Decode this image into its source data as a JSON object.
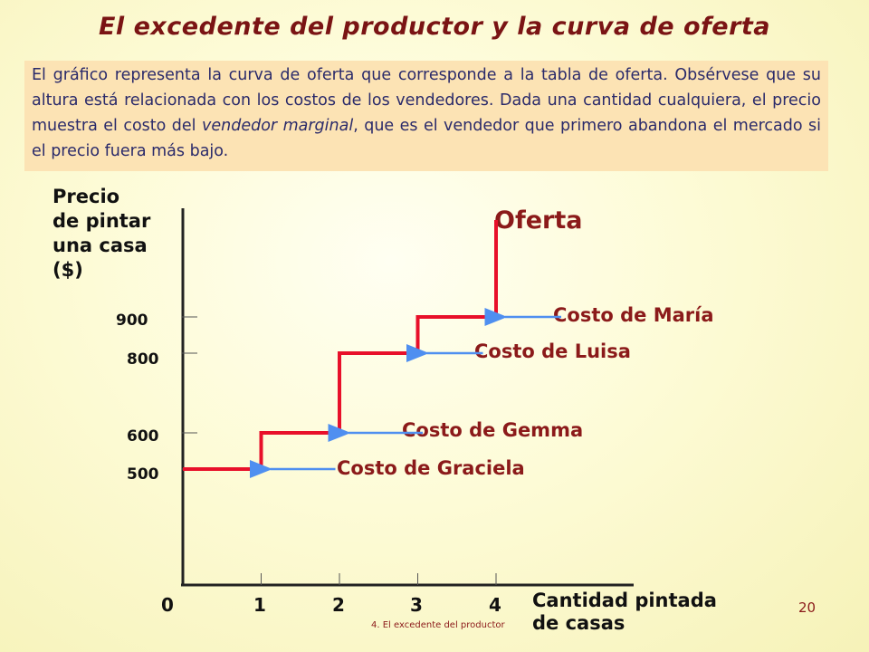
{
  "title": "El excedente del productor y la curva de oferta",
  "description": {
    "before_italic": "El gráfico representa la curva de oferta que corresponde a la tabla de oferta. Obsérvese que su altura está relacionada con los costos de los vendedores. Dada una cantidad cualquiera, el precio muestra el costo del ",
    "italic": "vendedor marginal",
    "after_italic": ", que es el vendedor que primero abandona el mercado si el precio fuera más bajo."
  },
  "page_number": "20",
  "footer": "4. El excedente del productor",
  "colors": {
    "curve": "#e8102a",
    "arrow": "#4f8ff0",
    "label": "#8b1a1a",
    "axis": "#222222"
  },
  "chart_data": {
    "type": "line",
    "step": true,
    "ylabel_lines": [
      "Precio",
      "de pintar",
      "una casa",
      "($)"
    ],
    "xlabel_lines": [
      "Cantidad pintada",
      "de casas"
    ],
    "x_ticks": [
      "0",
      "1",
      "2",
      "3",
      "4"
    ],
    "y_ticks": [
      "900",
      "800",
      "600",
      "500"
    ],
    "curve_title": "Oferta",
    "series": [
      {
        "name": "Oferta",
        "x": [
          0,
          1,
          1,
          2,
          2,
          3,
          3,
          4,
          4
        ],
        "y": [
          500,
          500,
          600,
          600,
          800,
          800,
          900,
          900,
          1290
        ]
      }
    ],
    "annotations": [
      {
        "text": "Costo de Graciela",
        "x": 1,
        "y": 500
      },
      {
        "text": "Costo de Gemma",
        "x": 2,
        "y": 600
      },
      {
        "text": "Costo de Luisa",
        "x": 3,
        "y": 800
      },
      {
        "text": "Costo de María",
        "x": 4,
        "y": 900
      }
    ]
  }
}
